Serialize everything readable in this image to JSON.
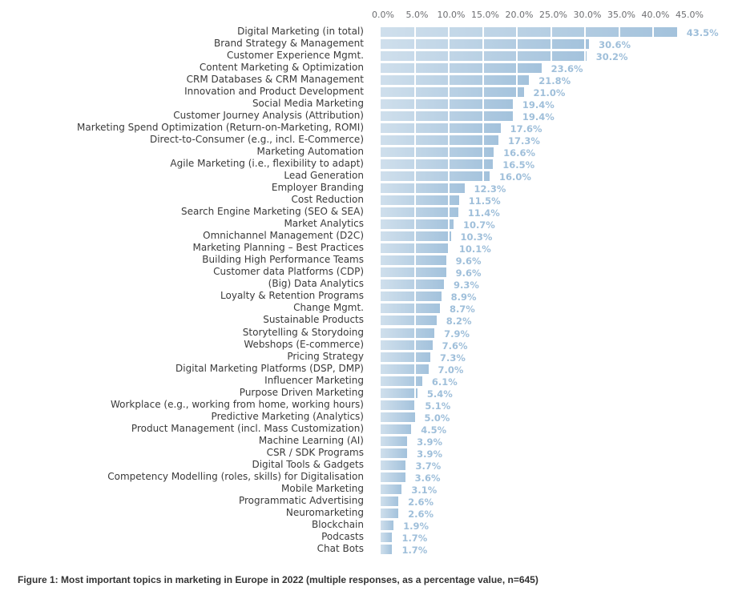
{
  "chart_data": {
    "type": "bar",
    "orientation": "horizontal",
    "title": "Figure 1: Most important topics in marketing in Europe in 2022 (multiple responses, as a percentage value, n=645)",
    "xlabel": "",
    "ylabel": "",
    "xlim": [
      0,
      45
    ],
    "x_ticks": [
      "0.0%",
      "5.0%",
      "10.0%",
      "15.0%",
      "20.0%",
      "25.0%",
      "30.0%",
      "35.0%",
      "40.0%",
      "45.0%"
    ],
    "x_tick_values": [
      0,
      5,
      10,
      15,
      20,
      25,
      30,
      35,
      40,
      45
    ],
    "grid": true,
    "bar_color": "#a3c2dc",
    "value_color": "#9fbfda",
    "categories": [
      "Digital Marketing (in total)",
      "Brand Strategy & Management",
      "Customer Experience Mgmt.",
      "Content Marketing & Optimization",
      "CRM Databases & CRM Management",
      "Innovation and Product Development",
      "Social Media Marketing",
      "Customer Journey Analysis (Attribution)",
      "Marketing Spend Optimization (Return-on-Marketing, ROMI)",
      "Direct-to-Consumer (e.g., incl. E-Commerce)",
      "Marketing Automation",
      "Agile Marketing (i.e., flexibility to adapt)",
      "Lead Generation",
      "Employer Branding",
      "Cost Reduction",
      "Search Engine Marketing (SEO & SEA)",
      "Market Analytics",
      "Omnichannel Management (D2C)",
      "Marketing Planning – Best Practices",
      "Building High Performance Teams",
      "Customer data Platforms (CDP)",
      "(Big) Data Analytics",
      "Loyalty & Retention Programs",
      "Change Mgmt.",
      "Sustainable Products",
      "Storytelling & Storydoing",
      "Webshops (E-commerce)",
      "Pricing Strategy",
      "Digital Marketing Platforms (DSP, DMP)",
      "Influencer Marketing",
      "Purpose Driven Marketing",
      "Workplace (e.g., working from home, working hours)",
      "Predictive Marketing (Analytics)",
      "Product Management (incl. Mass Customization)",
      "Machine Learning (AI)",
      "CSR / SDK Programs",
      "Digital Tools & Gadgets",
      "Competency Modelling (roles, skills) for Digitalisation",
      "Mobile Marketing",
      "Programmatic Advertising",
      "Neuromarketing",
      "Blockchain",
      "Podcasts",
      "Chat Bots"
    ],
    "values": [
      43.5,
      30.6,
      30.2,
      23.6,
      21.8,
      21.0,
      19.4,
      19.4,
      17.6,
      17.3,
      16.6,
      16.5,
      16.0,
      12.3,
      11.5,
      11.4,
      10.7,
      10.3,
      10.1,
      9.6,
      9.6,
      9.3,
      8.9,
      8.7,
      8.2,
      7.9,
      7.6,
      7.3,
      7.0,
      6.1,
      5.4,
      5.1,
      5.0,
      4.5,
      3.9,
      3.9,
      3.7,
      3.6,
      3.1,
      2.6,
      2.6,
      1.9,
      1.7,
      1.7
    ],
    "value_labels": [
      "43.5%",
      "30.6%",
      "30.2%",
      "23.6%",
      "21.8%",
      "21.0%",
      "19.4%",
      "19.4%",
      "17.6%",
      "17.3%",
      "16.6%",
      "16.5%",
      "16.0%",
      "12.3%",
      "11.5%",
      "11.4%",
      "10.7%",
      "10.3%",
      "10.1%",
      "9.6%",
      "9.6%",
      "9.3%",
      "8.9%",
      "8.7%",
      "8.2%",
      "7.9%",
      "7.6%",
      "7.3%",
      "7.0%",
      "6.1%",
      "5.4%",
      "5.1%",
      "5.0%",
      "4.5%",
      "3.9%",
      "3.9%",
      "3.7%",
      "3.6%",
      "3.1%",
      "2.6%",
      "2.6%",
      "1.9%",
      "1.7%",
      "1.7%"
    ]
  }
}
